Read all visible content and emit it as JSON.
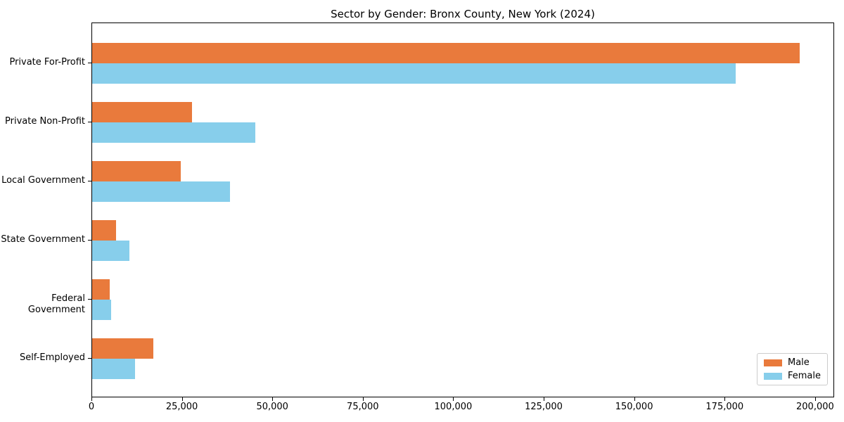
{
  "chart_data": {
    "type": "bar",
    "orientation": "horizontal",
    "title": "Sector by Gender: Bronx County, New York (2024)",
    "categories": [
      "Private For-Profit",
      "Private Non-Profit",
      "Local Government",
      "State Government",
      "Federal Government",
      "Self-Employed"
    ],
    "series": [
      {
        "name": "Male",
        "color": "#E97A3C",
        "values": [
          195500,
          27600,
          24500,
          6600,
          4900,
          16900
        ]
      },
      {
        "name": "Female",
        "color": "#87CEEB",
        "values": [
          177800,
          45100,
          38100,
          10300,
          5200,
          11900
        ]
      }
    ],
    "xlabel": "",
    "ylabel": "",
    "x_ticks": [
      0,
      25000,
      50000,
      75000,
      100000,
      125000,
      150000,
      175000,
      200000
    ],
    "x_tick_labels": [
      "0",
      "25,000",
      "50,000",
      "75,000",
      "100,000",
      "125,000",
      "150,000",
      "175,000",
      "200,000"
    ],
    "xlim": [
      0,
      205275
    ],
    "grid": false,
    "legend_position": "lower right",
    "colors": {
      "male": "#E97A3C",
      "female": "#87CEEB",
      "spine": "#000000",
      "background": "#ffffff"
    }
  }
}
